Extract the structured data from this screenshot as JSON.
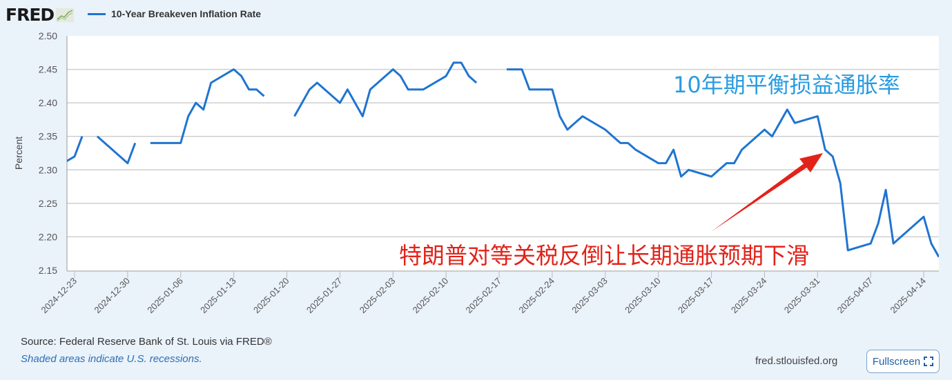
{
  "logo": {
    "text": "FRED"
  },
  "legend": {
    "series_name": "10-Year Breakeven Inflation Rate"
  },
  "footer": {
    "source": "Source: Federal Reserve Bank of St. Louis via FRED®",
    "shaded": "Shaded areas indicate U.S. recessions.",
    "site": "fred.stlouisfed.org",
    "fullscreen_label": "Fullscreen"
  },
  "annotations": {
    "title_cn": "10年期平衡损益通胀率",
    "caption_cn": "特朗普对等关税反倒让长期通胀预期下滑"
  },
  "colors": {
    "line": "#1f74d0",
    "annotation_blue": "#2a9be0",
    "annotation_red": "#e2231a",
    "background": "#eaf2fa"
  },
  "chart_data": {
    "type": "line",
    "title": "",
    "xlabel": "",
    "ylabel": "Percent",
    "ylim": [
      2.15,
      2.5
    ],
    "xlim": [
      "2024-12-22",
      "2025-04-16"
    ],
    "grid": true,
    "legend": "top-left",
    "yticks": [
      "2.15",
      "2.20",
      "2.25",
      "2.30",
      "2.35",
      "2.40",
      "2.45",
      "2.50"
    ],
    "xticks": [
      "2024-12-23",
      "2024-12-30",
      "2025-01-06",
      "2025-01-13",
      "2025-01-20",
      "2025-01-27",
      "2025-02-03",
      "2025-02-10",
      "2025-02-17",
      "2025-02-24",
      "2025-03-03",
      "2025-03-10",
      "2025-03-17",
      "2025-03-24",
      "2025-03-31",
      "2025-04-07",
      "2025-04-14"
    ],
    "series": [
      {
        "name": "10-Year Breakeven Inflation Rate",
        "points": [
          [
            "2024-12-20",
            2.3
          ],
          [
            "2024-12-23",
            2.32
          ],
          [
            "2024-12-24",
            2.35
          ],
          [
            "2024-12-25",
            null
          ],
          [
            "2024-12-26",
            2.35
          ],
          [
            "2024-12-30",
            2.31
          ],
          [
            "2024-12-31",
            2.34
          ],
          [
            "2025-01-01",
            null
          ],
          [
            "2025-01-02",
            2.34
          ],
          [
            "2025-01-06",
            2.34
          ],
          [
            "2025-01-07",
            2.38
          ],
          [
            "2025-01-08",
            2.4
          ],
          [
            "2025-01-09",
            2.39
          ],
          [
            "2025-01-10",
            2.43
          ],
          [
            "2025-01-13",
            2.45
          ],
          [
            "2025-01-14",
            2.44
          ],
          [
            "2025-01-15",
            2.42
          ],
          [
            "2025-01-16",
            2.42
          ],
          [
            "2025-01-17",
            2.41
          ],
          [
            "2025-01-20",
            null
          ],
          [
            "2025-01-21",
            2.38
          ],
          [
            "2025-01-22",
            2.4
          ],
          [
            "2025-01-23",
            2.42
          ],
          [
            "2025-01-24",
            2.43
          ],
          [
            "2025-01-27",
            2.4
          ],
          [
            "2025-01-28",
            2.42
          ],
          [
            "2025-01-29",
            2.4
          ],
          [
            "2025-01-30",
            2.38
          ],
          [
            "2025-01-31",
            2.42
          ],
          [
            "2025-02-03",
            2.45
          ],
          [
            "2025-02-04",
            2.44
          ],
          [
            "2025-02-05",
            2.42
          ],
          [
            "2025-02-06",
            2.42
          ],
          [
            "2025-02-07",
            2.42
          ],
          [
            "2025-02-10",
            2.44
          ],
          [
            "2025-02-11",
            2.46
          ],
          [
            "2025-02-12",
            2.46
          ],
          [
            "2025-02-13",
            2.44
          ],
          [
            "2025-02-14",
            2.43
          ],
          [
            "2025-02-17",
            null
          ],
          [
            "2025-02-18",
            2.45
          ],
          [
            "2025-02-19",
            2.45
          ],
          [
            "2025-02-20",
            2.45
          ],
          [
            "2025-02-21",
            2.42
          ],
          [
            "2025-02-24",
            2.42
          ],
          [
            "2025-02-25",
            2.38
          ],
          [
            "2025-02-26",
            2.36
          ],
          [
            "2025-02-27",
            2.37
          ],
          [
            "2025-02-28",
            2.38
          ],
          [
            "2025-03-03",
            2.36
          ],
          [
            "2025-03-04",
            2.35
          ],
          [
            "2025-03-05",
            2.34
          ],
          [
            "2025-03-06",
            2.34
          ],
          [
            "2025-03-07",
            2.33
          ],
          [
            "2025-03-10",
            2.31
          ],
          [
            "2025-03-11",
            2.31
          ],
          [
            "2025-03-12",
            2.33
          ],
          [
            "2025-03-13",
            2.29
          ],
          [
            "2025-03-14",
            2.3
          ],
          [
            "2025-03-17",
            2.29
          ],
          [
            "2025-03-18",
            2.3
          ],
          [
            "2025-03-19",
            2.31
          ],
          [
            "2025-03-20",
            2.31
          ],
          [
            "2025-03-21",
            2.33
          ],
          [
            "2025-03-24",
            2.36
          ],
          [
            "2025-03-25",
            2.35
          ],
          [
            "2025-03-26",
            2.37
          ],
          [
            "2025-03-27",
            2.39
          ],
          [
            "2025-03-28",
            2.37
          ],
          [
            "2025-03-31",
            2.38
          ],
          [
            "2025-04-01",
            2.33
          ],
          [
            "2025-04-02",
            2.32
          ],
          [
            "2025-04-03",
            2.28
          ],
          [
            "2025-04-04",
            2.18
          ],
          [
            "2025-04-07",
            2.19
          ],
          [
            "2025-04-08",
            2.22
          ],
          [
            "2025-04-09",
            2.27
          ],
          [
            "2025-04-10",
            2.19
          ],
          [
            "2025-04-11",
            2.2
          ],
          [
            "2025-04-14",
            2.23
          ],
          [
            "2025-04-15",
            2.19
          ],
          [
            "2025-04-16",
            2.17
          ]
        ]
      }
    ]
  }
}
